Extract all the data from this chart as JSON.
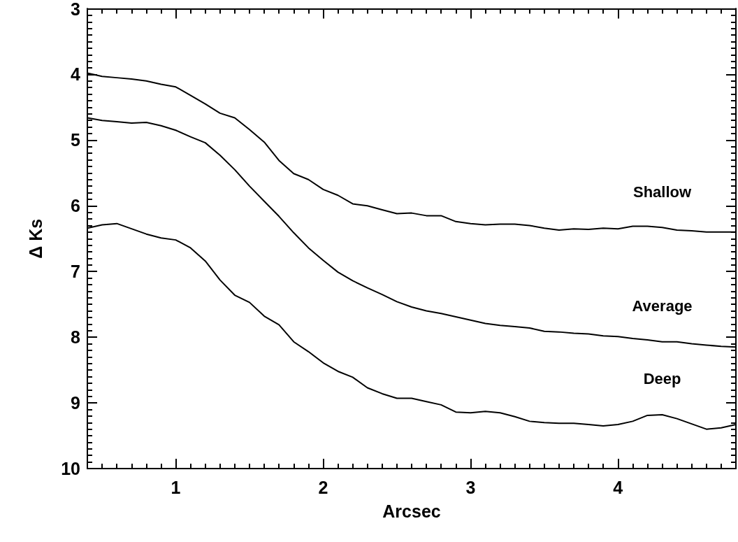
{
  "chart_data": {
    "type": "line",
    "xlabel": "Arcsec",
    "ylabel": "Δ Ks",
    "x": [
      0.4,
      0.5,
      0.6,
      0.7,
      0.8,
      0.9,
      1.0,
      1.1,
      1.2,
      1.3,
      1.4,
      1.5,
      1.6,
      1.7,
      1.8,
      1.9,
      2.0,
      2.1,
      2.2,
      2.3,
      2.4,
      2.5,
      2.6,
      2.7,
      2.8,
      2.9,
      3.0,
      3.1,
      3.2,
      3.3,
      3.4,
      3.5,
      3.6,
      3.7,
      3.8,
      3.9,
      4.0,
      4.1,
      4.2,
      4.3,
      4.4,
      4.5,
      4.6,
      4.7,
      4.8
    ],
    "series": [
      {
        "name": "Shallow",
        "color": "#000000",
        "values": [
          3.98,
          4.03,
          4.05,
          4.07,
          4.1,
          4.15,
          4.19,
          4.32,
          4.45,
          4.59,
          4.66,
          4.84,
          5.03,
          5.31,
          5.51,
          5.6,
          5.75,
          5.84,
          5.97,
          6.0,
          6.06,
          6.12,
          6.11,
          6.15,
          6.15,
          6.24,
          6.27,
          6.29,
          6.28,
          6.28,
          6.3,
          6.34,
          6.37,
          6.35,
          6.36,
          6.34,
          6.35,
          6.31,
          6.31,
          6.33,
          6.37,
          6.38,
          6.4,
          6.4,
          6.4
        ]
      },
      {
        "name": "Average",
        "color": "#000000",
        "values": [
          4.66,
          4.7,
          4.72,
          4.74,
          4.73,
          4.78,
          4.85,
          4.95,
          5.04,
          5.23,
          5.45,
          5.7,
          5.93,
          6.16,
          6.41,
          6.64,
          6.83,
          7.01,
          7.14,
          7.25,
          7.35,
          7.46,
          7.54,
          7.6,
          7.64,
          7.69,
          7.74,
          7.79,
          7.82,
          7.84,
          7.86,
          7.91,
          7.92,
          7.94,
          7.95,
          7.98,
          7.99,
          8.02,
          8.04,
          8.07,
          8.07,
          8.1,
          8.12,
          8.14,
          8.15
        ]
      },
      {
        "name": "Deep",
        "color": "#000000",
        "values": [
          6.34,
          6.29,
          6.27,
          6.35,
          6.43,
          6.49,
          6.52,
          6.64,
          6.84,
          7.13,
          7.36,
          7.47,
          7.68,
          7.81,
          8.07,
          8.22,
          8.39,
          8.52,
          8.61,
          8.77,
          8.86,
          8.93,
          8.93,
          8.98,
          9.03,
          9.14,
          9.15,
          9.13,
          9.15,
          9.21,
          9.28,
          9.3,
          9.31,
          9.31,
          9.33,
          9.35,
          9.33,
          9.28,
          9.19,
          9.18,
          9.24,
          9.32,
          9.4,
          9.38,
          9.33
        ]
      }
    ],
    "xlim": [
      0.4,
      4.8
    ],
    "xticks": [
      1,
      2,
      3,
      4
    ],
    "ylim": [
      10,
      3
    ],
    "yticks": [
      3,
      4,
      5,
      6,
      7,
      8,
      9,
      10
    ],
    "marker": "none",
    "line_style": "solid",
    "legend": false
  }
}
